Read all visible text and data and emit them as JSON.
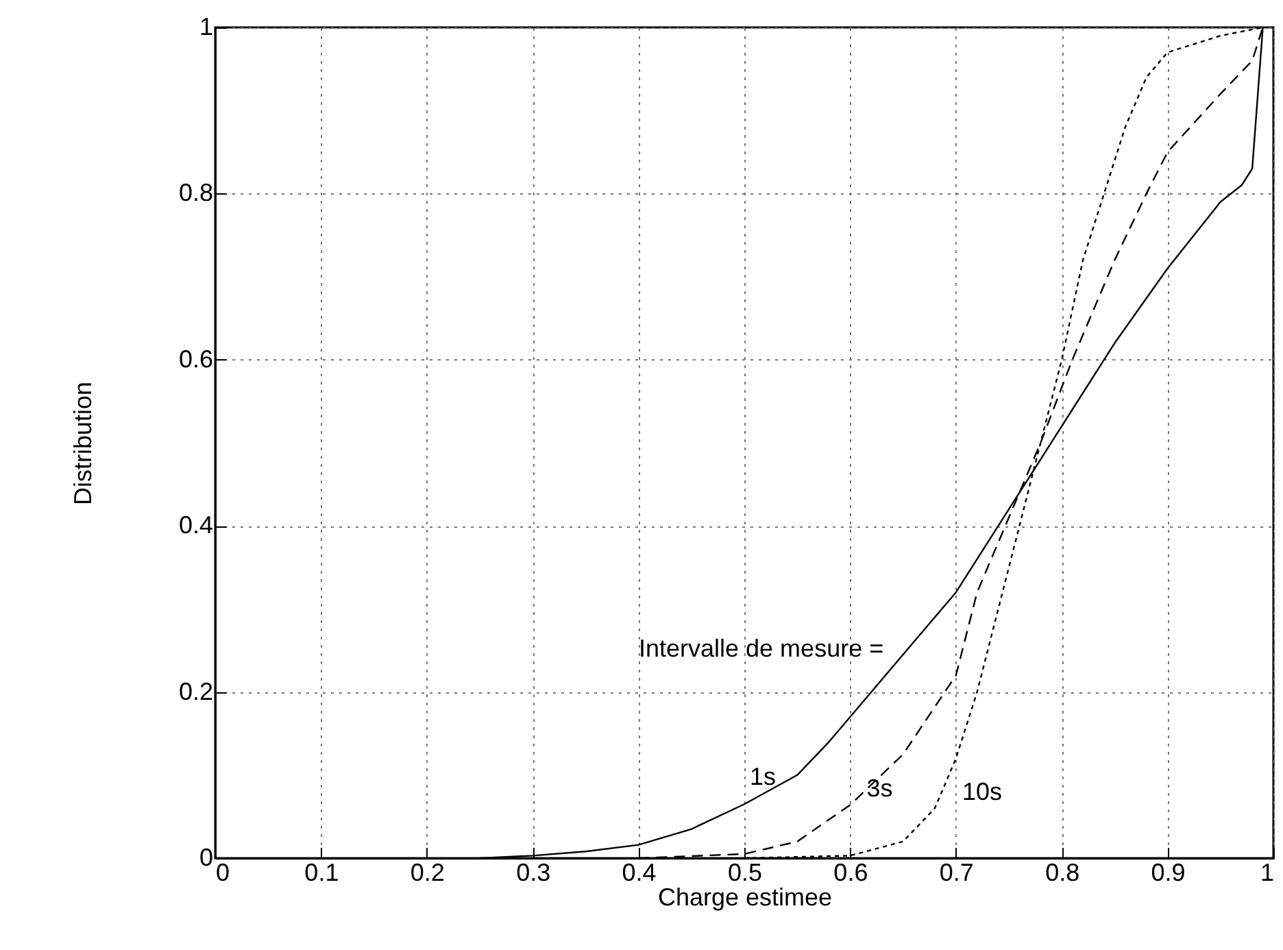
{
  "chart_data": {
    "type": "line",
    "xlabel": "Charge estimee",
    "ylabel": "Distribution",
    "xlim": [
      0,
      1
    ],
    "ylim": [
      0,
      1
    ],
    "xticks": [
      0,
      0.1,
      0.2,
      0.3,
      0.4,
      0.5,
      0.6,
      0.7,
      0.8,
      0.9,
      1
    ],
    "yticks": [
      0,
      0.2,
      0.4,
      0.6,
      0.8,
      1
    ],
    "grid": true,
    "marker": "none",
    "annotations": [
      "Intervalle de mesure ="
    ],
    "series": [
      {
        "name": "1s",
        "color": "#000000",
        "line_style": "solid",
        "x": [
          0.25,
          0.3,
          0.35,
          0.4,
          0.45,
          0.5,
          0.55,
          0.58,
          0.6,
          0.65,
          0.7,
          0.72,
          0.75,
          0.8,
          0.85,
          0.9,
          0.95,
          0.97,
          0.98,
          0.99
        ],
        "values": [
          0,
          0.003,
          0.008,
          0.016,
          0.035,
          0.065,
          0.1,
          0.14,
          0.17,
          0.245,
          0.32,
          0.36,
          0.42,
          0.52,
          0.62,
          0.71,
          0.79,
          0.81,
          0.83,
          1
        ]
      },
      {
        "name": "3s",
        "color": "#000000",
        "line_style": "dashed",
        "x": [
          0.4,
          0.5,
          0.55,
          0.6,
          0.65,
          0.7,
          0.72,
          0.75,
          0.78,
          0.81,
          0.85,
          0.88,
          0.9,
          0.95,
          0.98,
          0.99
        ],
        "values": [
          0,
          0.005,
          0.02,
          0.064,
          0.125,
          0.22,
          0.32,
          0.41,
          0.5,
          0.6,
          0.72,
          0.8,
          0.85,
          0.92,
          0.96,
          1
        ]
      },
      {
        "name": "10s",
        "color": "#000000",
        "line_style": "dotted",
        "x": [
          0.5,
          0.6,
          0.65,
          0.68,
          0.7,
          0.72,
          0.74,
          0.76,
          0.78,
          0.8,
          0.82,
          0.84,
          0.86,
          0.88,
          0.9,
          0.95,
          0.99
        ],
        "values": [
          0,
          0.003,
          0.02,
          0.06,
          0.12,
          0.2,
          0.3,
          0.4,
          0.5,
          0.6,
          0.72,
          0.8,
          0.88,
          0.94,
          0.97,
          0.99,
          1
        ]
      }
    ]
  }
}
